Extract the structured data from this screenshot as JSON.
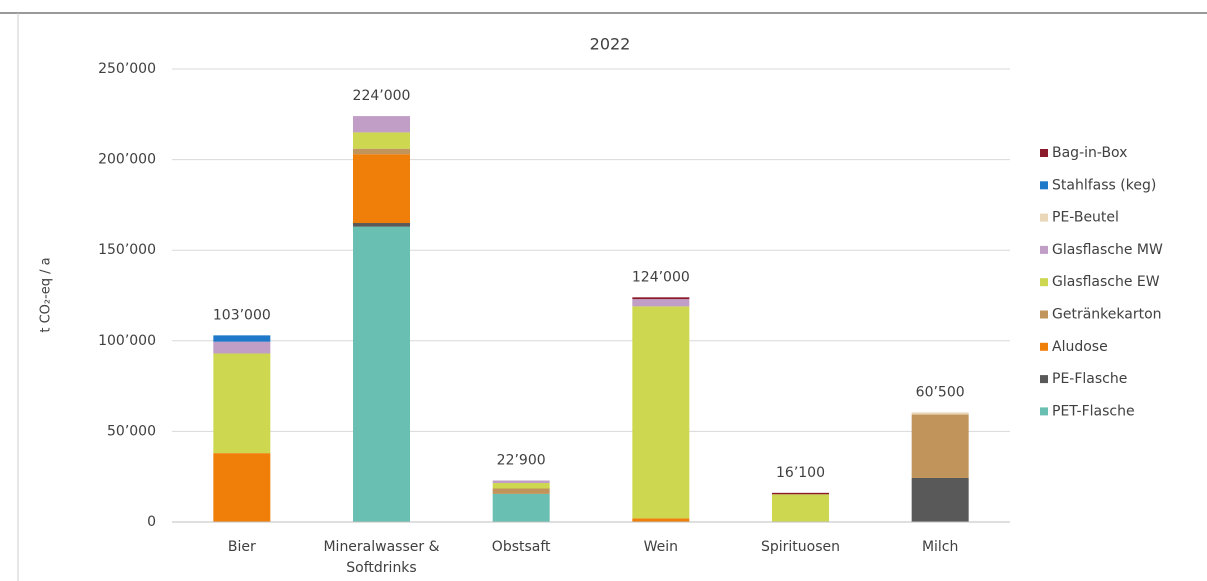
{
  "chart_data": {
    "type": "stacked_bar",
    "title": "2022",
    "y_label": "t CO₂-eq / a",
    "categories": [
      [
        "Bier"
      ],
      [
        "Mineralwasser &",
        "Softdrinks"
      ],
      [
        "Obstsaft"
      ],
      [
        "Wein"
      ],
      [
        "Spirituosen"
      ],
      [
        "Milch"
      ]
    ],
    "series": [
      {
        "name": "PET-Flasche",
        "color": "#6abfb3",
        "values": [
          0,
          163000,
          15500,
          0,
          0,
          0
        ]
      },
      {
        "name": "PE-Flasche",
        "color": "#595959",
        "values": [
          0,
          2000,
          0,
          0,
          0,
          24300
        ]
      },
      {
        "name": "Aludose",
        "color": "#f07f09",
        "values": [
          38000,
          38000,
          0,
          2000,
          0,
          0
        ]
      },
      {
        "name": "Getränkekarton",
        "color": "#c0945a",
        "values": [
          0,
          3000,
          3000,
          0,
          0,
          35000
        ]
      },
      {
        "name": "Glasflasche EW",
        "color": "#cdd850",
        "values": [
          55000,
          9000,
          3000,
          117000,
          15300,
          0
        ]
      },
      {
        "name": "Glasflasche MW",
        "color": "#c09ec6",
        "values": [
          6500,
          9000,
          1400,
          4000,
          0,
          0
        ]
      },
      {
        "name": "PE-Beutel",
        "color": "#ead7b8",
        "values": [
          0,
          0,
          0,
          0,
          0,
          1200
        ]
      },
      {
        "name": "Stahlfass (keg)",
        "color": "#1f78c8",
        "values": [
          3500,
          0,
          0,
          0,
          0,
          0
        ]
      },
      {
        "name": "Bag-in-Box",
        "color": "#8b1a2b",
        "values": [
          0,
          0,
          0,
          1000,
          800,
          0
        ]
      }
    ],
    "total_labels": [
      "103’000",
      "224’000",
      "22’900",
      "124’000",
      "16’100",
      "60’500"
    ],
    "ylim": [
      0,
      250000
    ],
    "yticks": [
      0,
      {
        "value": 50000,
        "label": "50’000"
      },
      {
        "value": 100000,
        "label": "100’000"
      },
      {
        "value": 150000,
        "label": "150’000"
      },
      {
        "value": 200000,
        "label": "200’000"
      },
      {
        "value": 250000,
        "label": "250’000"
      }
    ],
    "grid": true,
    "legend": "right"
  }
}
